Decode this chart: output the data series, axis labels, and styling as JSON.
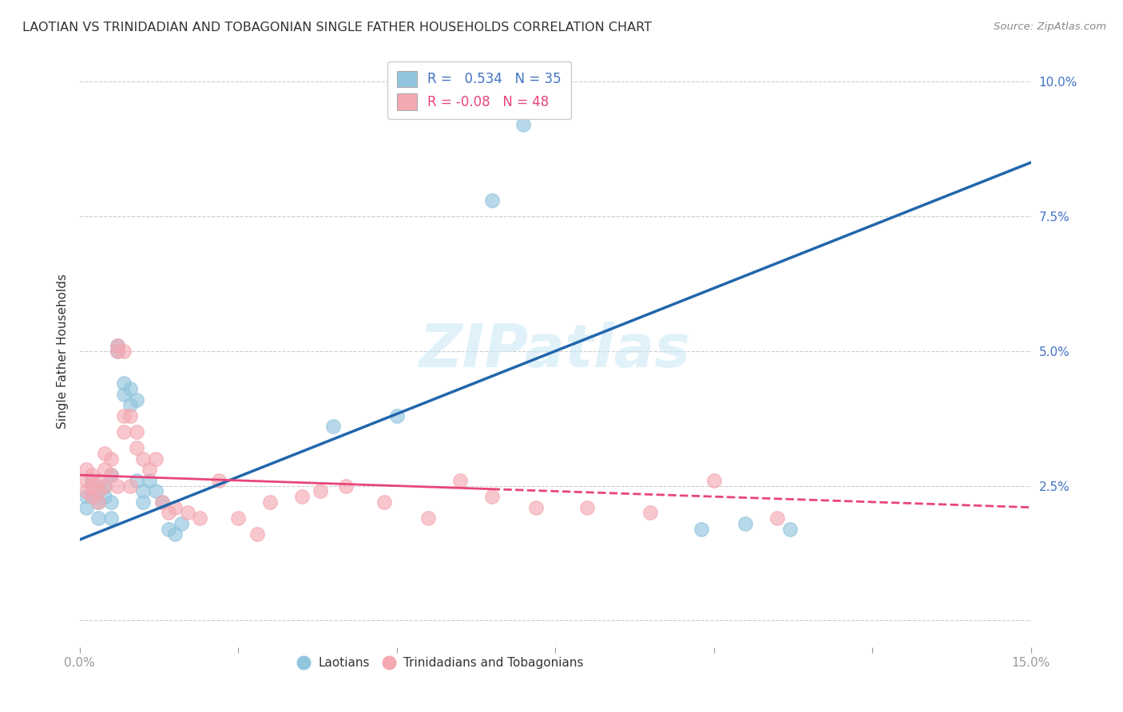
{
  "title": "LAOTIAN VS TRINIDADIAN AND TOBAGONIAN SINGLE FATHER HOUSEHOLDS CORRELATION CHART",
  "source": "Source: ZipAtlas.com",
  "ylabel": "Single Father Households",
  "watermark": "ZIPatlas",
  "xlim": [
    0.0,
    0.15
  ],
  "ylim": [
    -0.005,
    0.105
  ],
  "blue_R": 0.534,
  "blue_N": 35,
  "pink_R": -0.08,
  "pink_N": 48,
  "blue_color": "#92c5de",
  "pink_color": "#f4a9b2",
  "blue_line_color": "#2166ac",
  "pink_line_color": "#e8457a",
  "blue_scatter": [
    [
      0.001,
      0.023
    ],
    [
      0.001,
      0.021
    ],
    [
      0.002,
      0.026
    ],
    [
      0.002,
      0.023
    ],
    [
      0.003,
      0.024
    ],
    [
      0.003,
      0.022
    ],
    [
      0.003,
      0.019
    ],
    [
      0.004,
      0.025
    ],
    [
      0.004,
      0.023
    ],
    [
      0.005,
      0.022
    ],
    [
      0.005,
      0.019
    ],
    [
      0.005,
      0.027
    ],
    [
      0.006,
      0.051
    ],
    [
      0.006,
      0.05
    ],
    [
      0.007,
      0.044
    ],
    [
      0.007,
      0.042
    ],
    [
      0.008,
      0.043
    ],
    [
      0.008,
      0.04
    ],
    [
      0.009,
      0.041
    ],
    [
      0.009,
      0.026
    ],
    [
      0.01,
      0.024
    ],
    [
      0.01,
      0.022
    ],
    [
      0.011,
      0.026
    ],
    [
      0.012,
      0.024
    ],
    [
      0.013,
      0.022
    ],
    [
      0.014,
      0.017
    ],
    [
      0.015,
      0.016
    ],
    [
      0.016,
      0.018
    ],
    [
      0.04,
      0.036
    ],
    [
      0.05,
      0.038
    ],
    [
      0.065,
      0.078
    ],
    [
      0.07,
      0.092
    ],
    [
      0.098,
      0.017
    ],
    [
      0.105,
      0.018
    ],
    [
      0.112,
      0.017
    ]
  ],
  "pink_scatter": [
    [
      0.001,
      0.028
    ],
    [
      0.001,
      0.026
    ],
    [
      0.001,
      0.024
    ],
    [
      0.002,
      0.027
    ],
    [
      0.002,
      0.025
    ],
    [
      0.002,
      0.023
    ],
    [
      0.003,
      0.026
    ],
    [
      0.003,
      0.024
    ],
    [
      0.003,
      0.022
    ],
    [
      0.004,
      0.031
    ],
    [
      0.004,
      0.028
    ],
    [
      0.004,
      0.025
    ],
    [
      0.005,
      0.03
    ],
    [
      0.005,
      0.027
    ],
    [
      0.006,
      0.051
    ],
    [
      0.006,
      0.05
    ],
    [
      0.006,
      0.025
    ],
    [
      0.007,
      0.05
    ],
    [
      0.007,
      0.038
    ],
    [
      0.007,
      0.035
    ],
    [
      0.008,
      0.038
    ],
    [
      0.008,
      0.025
    ],
    [
      0.009,
      0.035
    ],
    [
      0.009,
      0.032
    ],
    [
      0.01,
      0.03
    ],
    [
      0.011,
      0.028
    ],
    [
      0.012,
      0.03
    ],
    [
      0.013,
      0.022
    ],
    [
      0.014,
      0.02
    ],
    [
      0.015,
      0.021
    ],
    [
      0.017,
      0.02
    ],
    [
      0.019,
      0.019
    ],
    [
      0.022,
      0.026
    ],
    [
      0.025,
      0.019
    ],
    [
      0.028,
      0.016
    ],
    [
      0.03,
      0.022
    ],
    [
      0.035,
      0.023
    ],
    [
      0.038,
      0.024
    ],
    [
      0.042,
      0.025
    ],
    [
      0.048,
      0.022
    ],
    [
      0.055,
      0.019
    ],
    [
      0.06,
      0.026
    ],
    [
      0.065,
      0.023
    ],
    [
      0.072,
      0.021
    ],
    [
      0.08,
      0.021
    ],
    [
      0.09,
      0.02
    ],
    [
      0.1,
      0.026
    ],
    [
      0.11,
      0.019
    ]
  ],
  "background_color": "#ffffff",
  "grid_color": "#cccccc"
}
